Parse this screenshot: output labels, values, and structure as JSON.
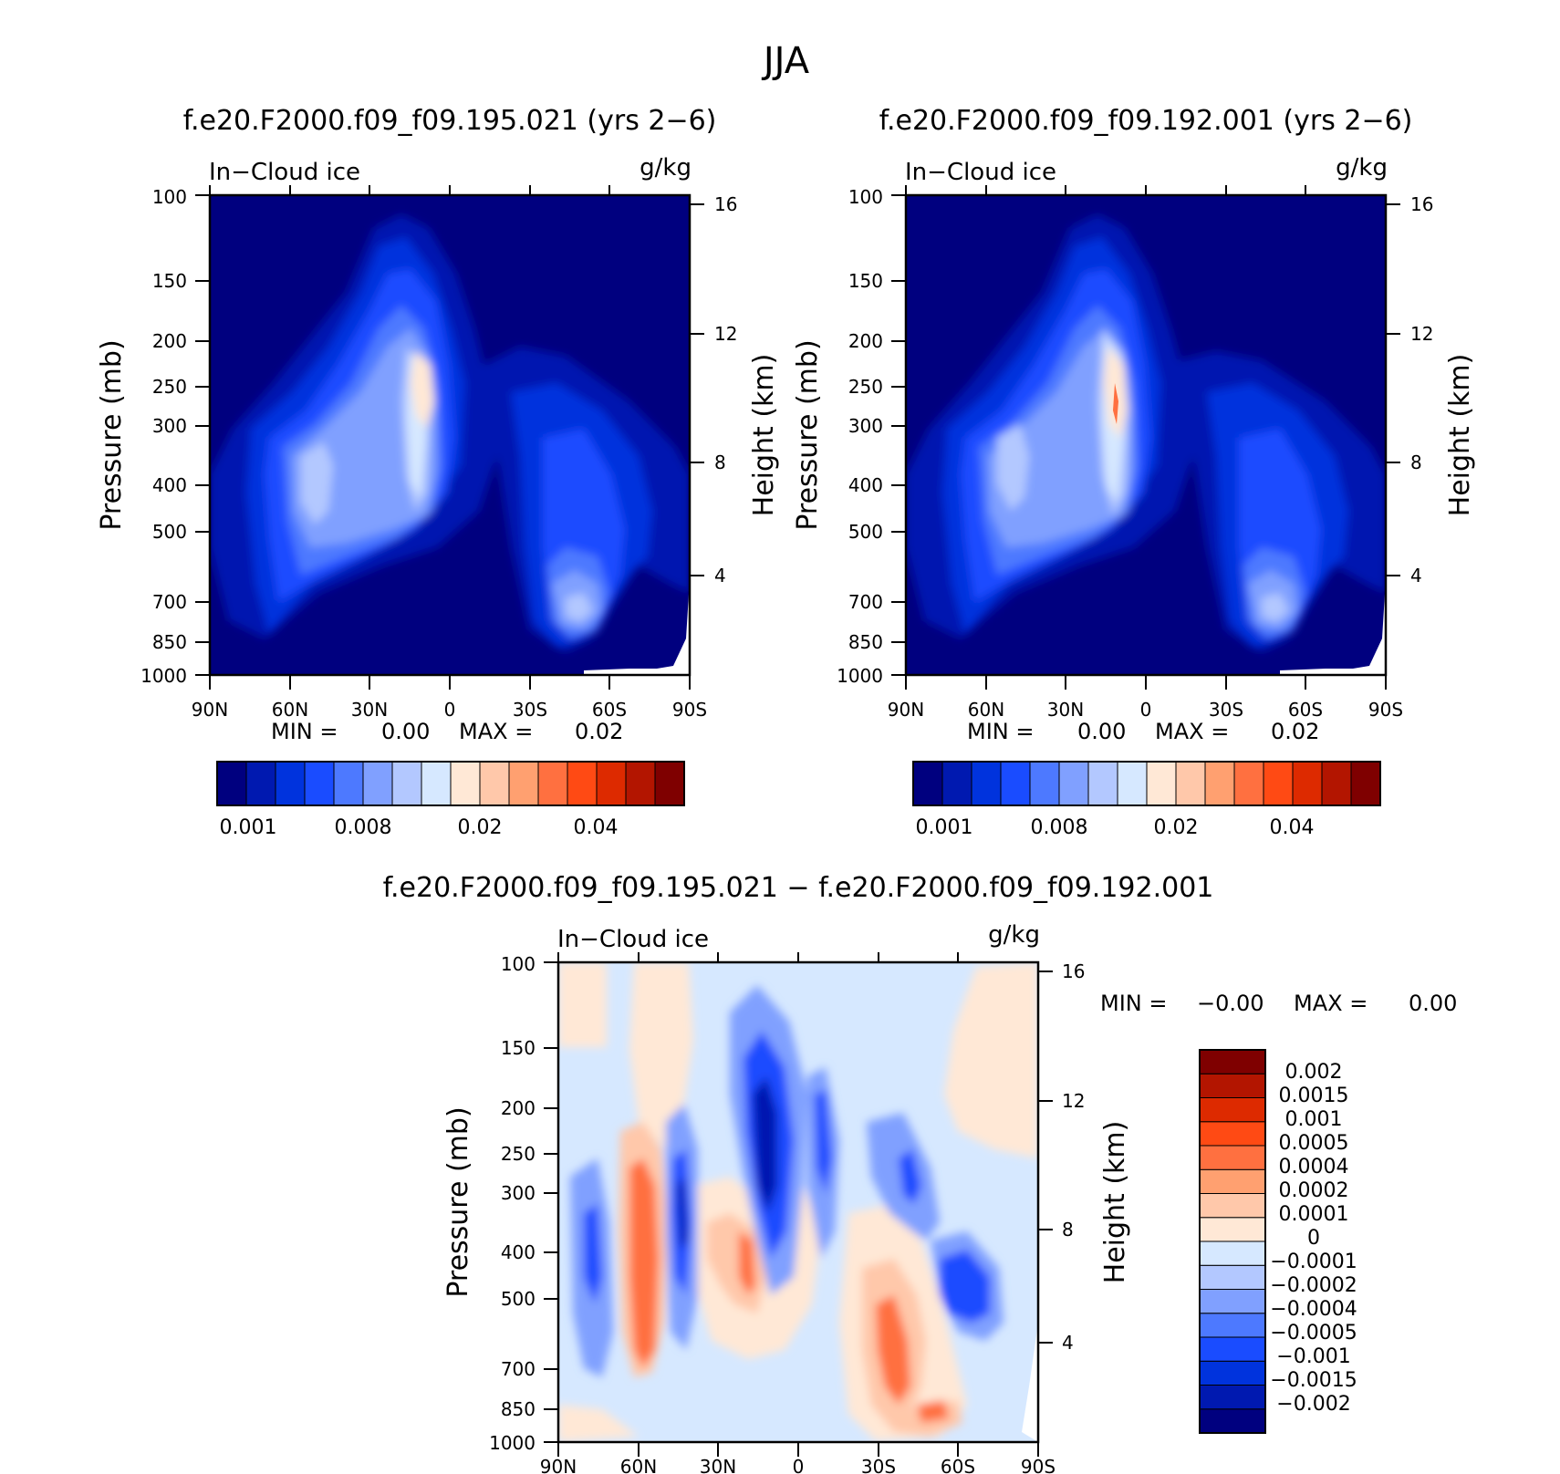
{
  "chart_data": {
    "type": "heatmap",
    "title": "JJA",
    "panels": [
      {
        "id": "case",
        "title": "f.e20.F2000.f09_f09.195.021 (yrs 2−6)",
        "left_label": "In−Cloud ice",
        "right_label": "g/kg",
        "ylabel": "Pressure (mb)",
        "ylabel_right": "Height (km)",
        "pressure_ticks": [
          "100",
          "150",
          "200",
          "250",
          "300",
          "400",
          "500",
          "700",
          "850",
          "1000"
        ],
        "height_ticks": [
          "16",
          "12",
          "8",
          "4"
        ],
        "x_ticks": [
          "90N",
          "60N",
          "30N",
          "0",
          "30S",
          "60S",
          "90S"
        ],
        "stats": {
          "min_label": "MIN =",
          "min_value": "0.00",
          "max_label": "MAX =",
          "max_value": "0.02"
        },
        "colorbar_labels": [
          "0.001",
          "0.008",
          "0.02",
          "0.04"
        ]
      },
      {
        "id": "control",
        "title": "f.e20.F2000.f09_f09.192.001 (yrs 2−6)",
        "left_label": "In−Cloud ice",
        "right_label": "g/kg",
        "ylabel": "Pressure (mb)",
        "ylabel_right": "Height (km)",
        "pressure_ticks": [
          "100",
          "150",
          "200",
          "250",
          "300",
          "400",
          "500",
          "700",
          "850",
          "1000"
        ],
        "height_ticks": [
          "16",
          "12",
          "8",
          "4"
        ],
        "x_ticks": [
          "90N",
          "60N",
          "30N",
          "0",
          "30S",
          "60S",
          "90S"
        ],
        "stats": {
          "min_label": "MIN =",
          "min_value": "0.00",
          "max_label": "MAX =",
          "max_value": "0.02"
        },
        "colorbar_labels": [
          "0.001",
          "0.008",
          "0.02",
          "0.04"
        ]
      },
      {
        "id": "diff",
        "title": "f.e20.F2000.f09_f09.195.021 − f.e20.F2000.f09_f09.192.001",
        "left_label": "In−Cloud ice",
        "right_label": "g/kg",
        "ylabel": "Pressure (mb)",
        "ylabel_right": "Height (km)",
        "pressure_ticks": [
          "100",
          "150",
          "200",
          "250",
          "300",
          "400",
          "500",
          "700",
          "850",
          "1000"
        ],
        "height_ticks": [
          "16",
          "12",
          "8",
          "4"
        ],
        "x_ticks": [
          "90N",
          "60N",
          "30N",
          "0",
          "30S",
          "60S",
          "90S"
        ],
        "stats": {
          "min_label": "MIN =",
          "min_value": "−0.00",
          "max_label": "MAX =",
          "max_value": "0.00"
        },
        "colorbar_labels": [
          "0.002",
          "0.0015",
          "0.001",
          "0.0005",
          "0.0004",
          "0.0002",
          "0.0001",
          "0",
          "−0.0001",
          "−0.0002",
          "−0.0004",
          "−0.0005",
          "−0.001",
          "−0.0015",
          "−0.002"
        ]
      }
    ],
    "palette": [
      "#00007f",
      "#0019b0",
      "#0033dd",
      "#1a4cff",
      "#4d79ff",
      "#80a0ff",
      "#b3c8ff",
      "#d6e8ff",
      "#ffe8d6",
      "#ffc8aa",
      "#ffa070",
      "#ff7040",
      "#ff4a14",
      "#dd2a00",
      "#b31500",
      "#7f0000"
    ]
  }
}
